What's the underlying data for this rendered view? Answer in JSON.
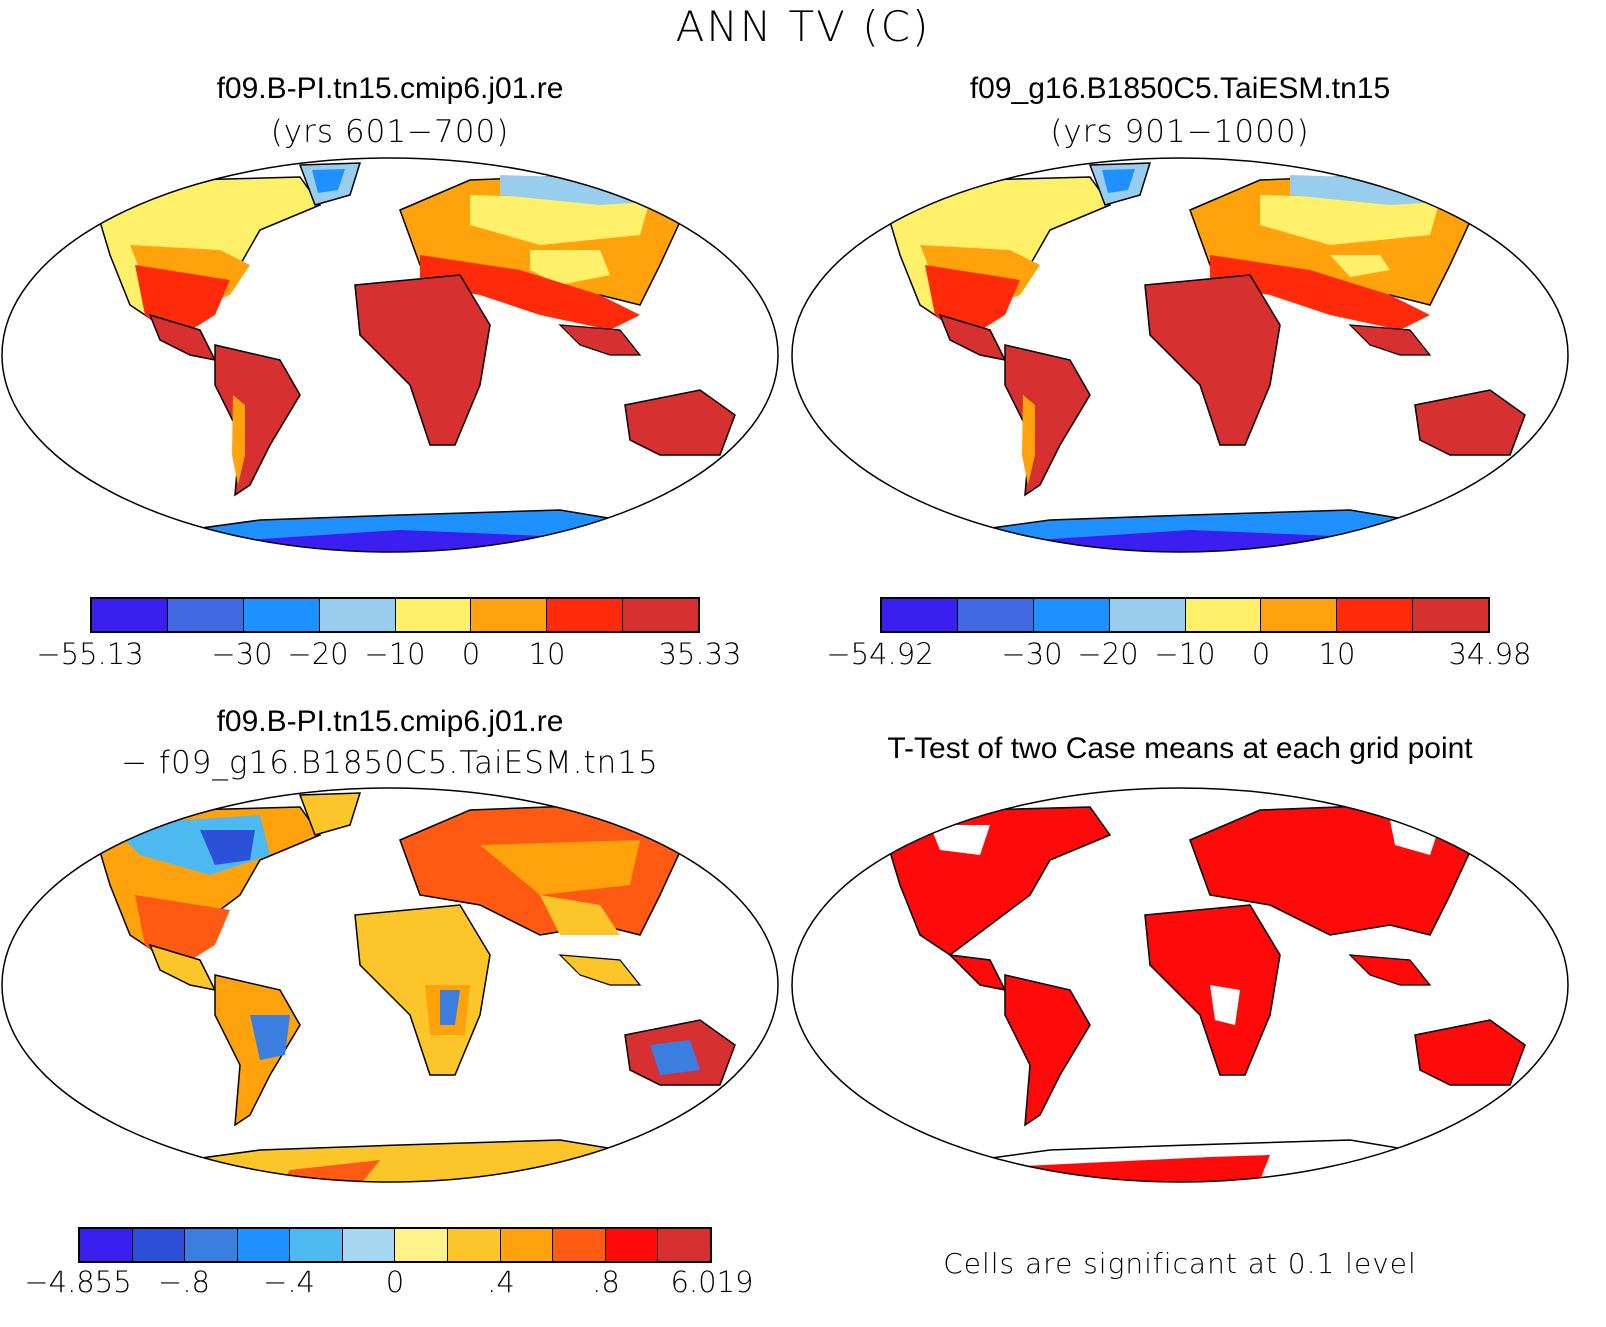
{
  "title": "ANN TV (C)",
  "panels": [
    {
      "title": "f09.B-PI.tn15.cmip6.j01.re",
      "subtitle": "(yrs 601−700)"
    },
    {
      "title": "f09_g16.B1850C5.TaiESM.tn15",
      "subtitle": "(yrs 901−1000)"
    },
    {
      "title": "f09.B-PI.tn15.cmip6.j01.re",
      "subtitle": "− f09_g16.B1850C5.TaiESM.tn15"
    },
    {
      "title": "T-Test of two Case means at each grid point",
      "subtitle": ""
    }
  ],
  "colorbars": [
    {
      "colors": [
        "#3b1ef0",
        "#4169e1",
        "#1e90ff",
        "#98cdee",
        "#fff06a",
        "#ffa20b",
        "#ff2a0a",
        "#d63030"
      ],
      "labels": [
        "−55.13",
        "−30",
        "−20",
        "−10",
        "0",
        "10",
        "35.33"
      ]
    },
    {
      "colors": [
        "#3b1ef0",
        "#4169e1",
        "#1e90ff",
        "#98cdee",
        "#fff06a",
        "#ffa20b",
        "#ff2a0a",
        "#d63030"
      ],
      "labels": [
        "−54.92",
        "−30",
        "−20",
        "−10",
        "0",
        "10",
        "34.98"
      ]
    },
    {
      "colors": [
        "#3b1ef0",
        "#2c50d8",
        "#3a7fe0",
        "#1e90ff",
        "#4cbaf0",
        "#a6d8f2",
        "#fff28a",
        "#fcc62a",
        "#ffa20b",
        "#ff5a14",
        "#ff0a0a",
        "#d63030"
      ],
      "labels": [
        "−4.855",
        "−.8",
        "−.4",
        "0",
        ".4",
        ".8",
        "6.019"
      ]
    }
  ],
  "significance_note": "Cells are significant at 0.1 level",
  "palette": {
    "land_warm": "#d63030",
    "land_orange": "#ffa20b",
    "land_yellow": "#fff06a",
    "ice": "#3b1ef0",
    "ice_light": "#98cdee",
    "signif": "#ff0a0a"
  }
}
